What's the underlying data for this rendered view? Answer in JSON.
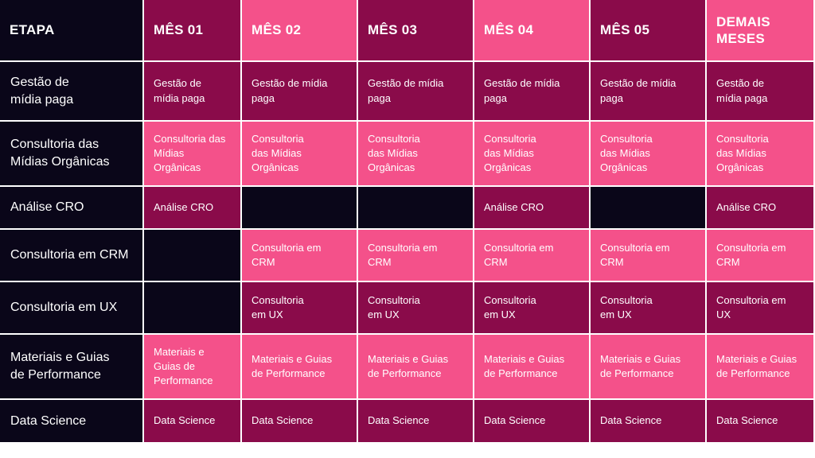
{
  "colors": {
    "dark": "#0a0619",
    "maroon": "#8a0b4a",
    "pink": "#f4518a"
  },
  "headers": [
    {
      "text": "ETAPA",
      "color": "dark"
    },
    {
      "text": "MÊS 01",
      "color": "maroon"
    },
    {
      "text": "MÊS 02",
      "color": "pink"
    },
    {
      "text": "MÊS 03",
      "color": "maroon"
    },
    {
      "text": "MÊS 04",
      "color": "pink"
    },
    {
      "text": "MÊS 05",
      "color": "maroon"
    },
    {
      "text": "DEMAIS\nMESES",
      "color": "pink"
    }
  ],
  "rows": [
    {
      "label": "Gestão de\nmídia paga",
      "cells": [
        {
          "text": "Gestão de\nmídia paga",
          "color": "maroon"
        },
        {
          "text": "Gestão de mídia\npaga",
          "color": "maroon"
        },
        {
          "text": "Gestão de mídia\npaga",
          "color": "maroon"
        },
        {
          "text": "Gestão de mídia\npaga",
          "color": "maroon"
        },
        {
          "text": "Gestão de mídia\npaga",
          "color": "maroon"
        },
        {
          "text": "Gestão de\nmídia paga",
          "color": "maroon"
        }
      ]
    },
    {
      "label": "Consultoria das\nMídias Orgânicas",
      "cells": [
        {
          "text": "Consultoria das\nMídias\nOrgânicas",
          "color": "pink"
        },
        {
          "text": "Consultoria\ndas Mídias\nOrgânicas",
          "color": "pink"
        },
        {
          "text": "Consultoria\n das Mídias\nOrgânicas",
          "color": "pink"
        },
        {
          "text": "Consultoria\ndas Mídias\nOrgânicas",
          "color": "pink"
        },
        {
          "text": "Consultoria\ndas Mídias\nOrgânicas",
          "color": "pink"
        },
        {
          "text": "Consultoria\ndas Mídias\nOrgânicas",
          "color": "pink"
        }
      ]
    },
    {
      "label": "Análise CRO",
      "cells": [
        {
          "text": "Análise CRO",
          "color": "maroon"
        },
        {
          "text": "",
          "color": "dark"
        },
        {
          "text": "",
          "color": "dark"
        },
        {
          "text": "Análise CRO",
          "color": "maroon"
        },
        {
          "text": "",
          "color": "dark"
        },
        {
          "text": "Análise CRO",
          "color": "maroon"
        }
      ]
    },
    {
      "label": "Consultoria em CRM",
      "cells": [
        {
          "text": "",
          "color": "dark"
        },
        {
          "text": "Consultoria em\nCRM",
          "color": "pink"
        },
        {
          "text": "Consultoria em\nCRM",
          "color": "pink"
        },
        {
          "text": "Consultoria em\nCRM",
          "color": "pink"
        },
        {
          "text": "Consultoria em\nCRM",
          "color": "pink"
        },
        {
          "text": "Consultoria em\nCRM",
          "color": "pink"
        }
      ]
    },
    {
      "label": "Consultoria em UX",
      "cells": [
        {
          "text": "",
          "color": "dark"
        },
        {
          "text": "Consultoria\nem UX",
          "color": "maroon"
        },
        {
          "text": "Consultoria\nem UX",
          "color": "maroon"
        },
        {
          "text": "Consultoria\nem UX",
          "color": "maroon"
        },
        {
          "text": "Consultoria\nem UX",
          "color": "maroon"
        },
        {
          "text": "Consultoria em\nUX",
          "color": "maroon"
        }
      ]
    },
    {
      "label": "Materiais e Guias\nde Performance",
      "cells": [
        {
          "text": "Materiais e\nGuias de\nPerformance",
          "color": "pink"
        },
        {
          "text": "Materiais e Guias\nde Performance",
          "color": "pink"
        },
        {
          "text": "Materiais e Guias\nde Performance",
          "color": "pink"
        },
        {
          "text": "Materiais e Guias\nde Performance",
          "color": "pink"
        },
        {
          "text": "Materiais e Guias\nde Performance",
          "color": "pink"
        },
        {
          "text": "Materiais e Guias\nde Performance",
          "color": "pink"
        }
      ]
    },
    {
      "label": "Data Science",
      "cells": [
        {
          "text": "Data Science",
          "color": "maroon"
        },
        {
          "text": "Data Science",
          "color": "maroon"
        },
        {
          "text": "Data Science",
          "color": "maroon"
        },
        {
          "text": "Data Science",
          "color": "maroon"
        },
        {
          "text": "Data Science",
          "color": "maroon"
        },
        {
          "text": "Data Science",
          "color": "maroon"
        }
      ]
    }
  ]
}
